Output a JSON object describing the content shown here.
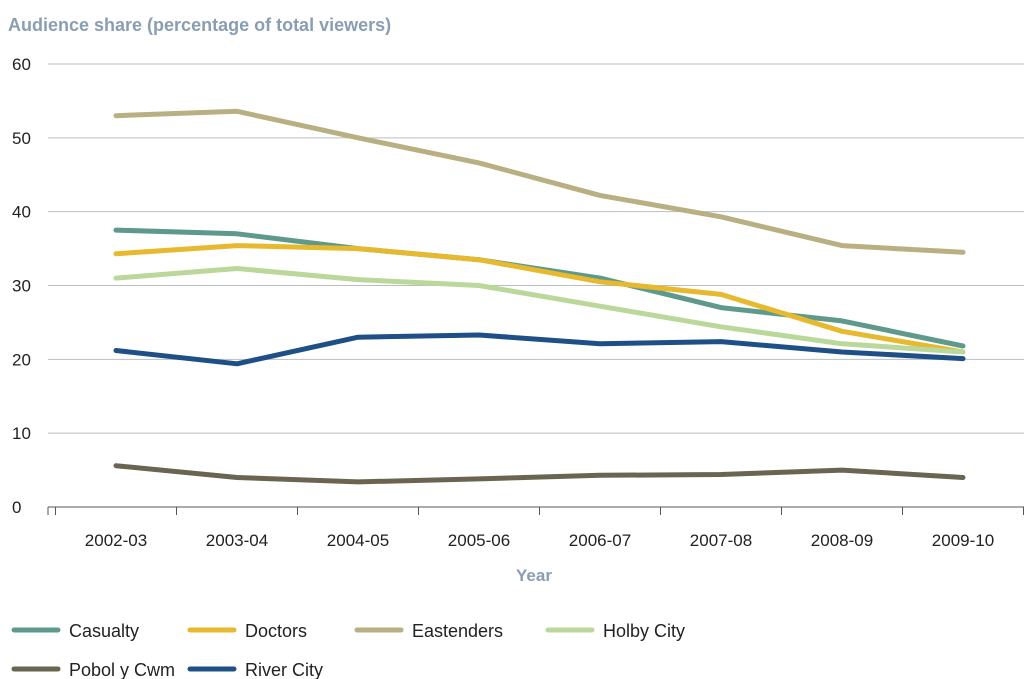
{
  "chart_data": {
    "type": "line",
    "ylabel": "Audience share (percentage of total viewers)",
    "xlabel": "Year",
    "categories": [
      "2002-03",
      "2003-04",
      "2004-05",
      "2005-06",
      "2006-07",
      "2007-08",
      "2008-09",
      "2009-10"
    ],
    "ylim": [
      0,
      60
    ],
    "yticks": [
      0,
      10,
      20,
      30,
      40,
      50,
      60
    ],
    "grid": true,
    "legend_position": "bottom",
    "series": [
      {
        "name": "Casualty",
        "color": "#5e998c",
        "values": [
          37.5,
          37.0,
          35.0,
          33.5,
          31.0,
          27.0,
          25.2,
          21.8
        ]
      },
      {
        "name": "Doctors",
        "color": "#e6b92e",
        "values": [
          34.3,
          35.4,
          35.0,
          33.5,
          30.5,
          28.8,
          23.8,
          21.0
        ]
      },
      {
        "name": "Eastenders",
        "color": "#b8b082",
        "values": [
          53.0,
          53.6,
          50.0,
          46.6,
          42.2,
          39.3,
          35.4,
          34.5
        ]
      },
      {
        "name": "Holby City",
        "color": "#bad89a",
        "values": [
          31.0,
          32.3,
          30.8,
          30.0,
          27.2,
          24.4,
          22.1,
          21.0
        ]
      },
      {
        "name": "Pobol y Cwm",
        "color": "#6a6551",
        "values": [
          5.6,
          4.0,
          3.4,
          3.8,
          4.3,
          4.4,
          5.0,
          4.0
        ]
      },
      {
        "name": "River City",
        "color": "#1e4f87",
        "values": [
          21.2,
          19.4,
          23.0,
          23.3,
          22.1,
          22.4,
          21.0,
          20.1
        ]
      }
    ]
  }
}
